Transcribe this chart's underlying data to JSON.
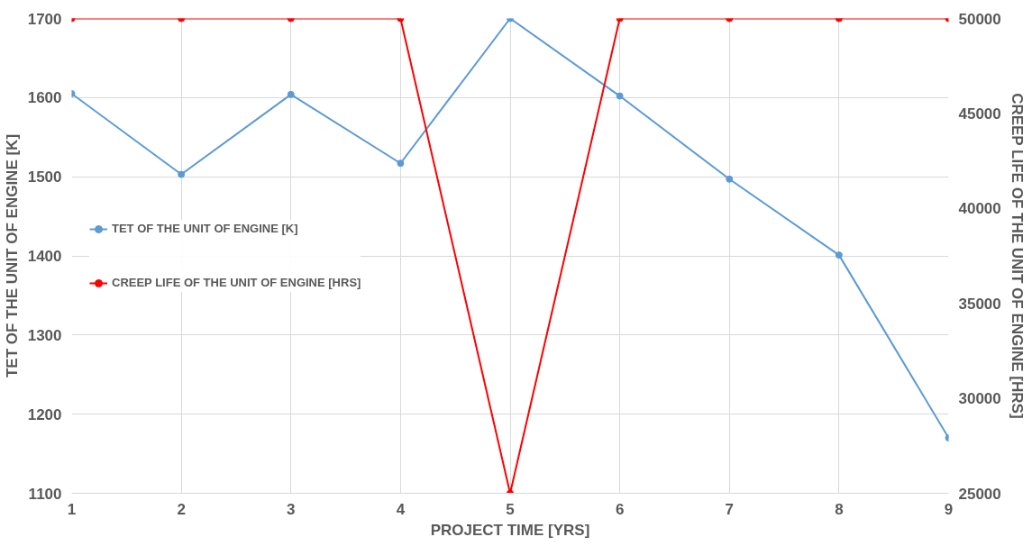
{
  "chart_data": {
    "type": "line",
    "xlabel": "PROJECT TIME [YRS]",
    "ylabel": "TET OF THE UNIT OF ENGINE [K]",
    "y2label": "CREEP LIFE OF THE UNIT OF ENGINE [HRS]",
    "x": [
      1,
      2,
      3,
      4,
      5,
      6,
      7,
      8,
      9
    ],
    "series": [
      {
        "name": "TET OF THE UNIT OF ENGINE [K]",
        "color": "#5b9bd5",
        "values": [
          1605,
          1503,
          1604,
          1517,
          1700,
          1602,
          1497,
          1401,
          1170
        ]
      },
      {
        "name": "CREEP LIFE OF THE UNIT OF ENGINE [HRS]",
        "color": "#ff0000",
        "axis": "y2",
        "values": [
          50000,
          50000,
          50000,
          50000,
          25000,
          50000,
          50000,
          50000,
          50000
        ]
      }
    ],
    "xlim": [
      1,
      9
    ],
    "xticks": [
      1,
      2,
      3,
      4,
      5,
      6,
      7,
      8,
      9
    ],
    "ylim": [
      1100,
      1700
    ],
    "yticks": [
      1100,
      1200,
      1300,
      1400,
      1500,
      1600,
      1700
    ],
    "y2lim": [
      25000,
      50000
    ],
    "y2ticks": [
      25000,
      30000,
      35000,
      40000,
      45000,
      50000
    ],
    "grid": true,
    "legend": "left",
    "marker": "circle",
    "line_style": "solid"
  }
}
